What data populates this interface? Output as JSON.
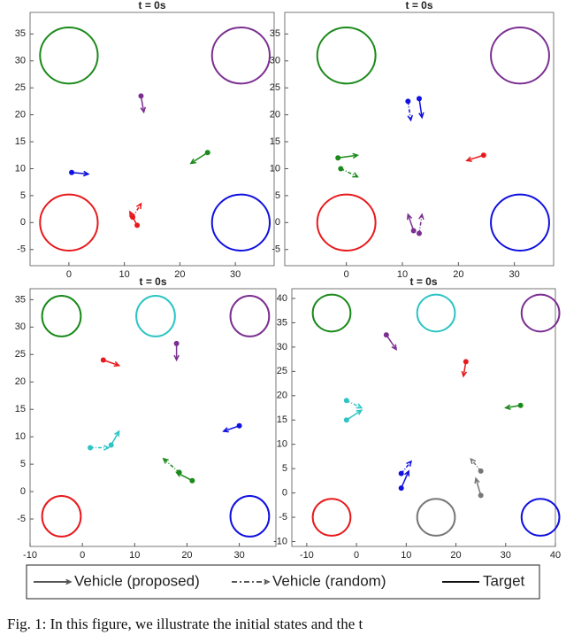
{
  "chart_data": [
    {
      "type": "trajectory",
      "title": "t = 0s",
      "xlim": [
        -7,
        37
      ],
      "ylim": [
        -8,
        39
      ],
      "xticks": [
        0,
        10,
        20,
        30
      ],
      "yticks": [
        -5,
        0,
        5,
        10,
        15,
        20,
        25,
        30,
        35
      ],
      "targets": [
        {
          "x": 0,
          "y": 31,
          "r": 5.2,
          "color": "#1a8a1a"
        },
        {
          "x": 31,
          "y": 31,
          "r": 5.2,
          "color": "#7b2f91"
        },
        {
          "x": 0,
          "y": 0,
          "r": 5.2,
          "color": "#e8191c"
        },
        {
          "x": 31,
          "y": 0,
          "r": 5.2,
          "color": "#1010e0"
        }
      ],
      "vehicles": [
        {
          "x": 13,
          "y": 23.5,
          "x2": 13.5,
          "y2": 20.5,
          "style": "solid",
          "color": "#7b2f91"
        },
        {
          "x": 25,
          "y": 13,
          "x2": 22,
          "y2": 11,
          "style": "solid",
          "color": "#1a8a1a"
        },
        {
          "x": 0.5,
          "y": 9.3,
          "x2": 3.5,
          "y2": 9,
          "style": "solid",
          "color": "#1010e0"
        },
        {
          "x": 12.3,
          "y": -0.5,
          "x2": 11,
          "y2": 2,
          "style": "solid",
          "color": "#e8191c"
        },
        {
          "x": 11.5,
          "y": 1,
          "x2": 13,
          "y2": 3.5,
          "style": "dashdot",
          "color": "#e8191c"
        }
      ]
    },
    {
      "type": "trajectory",
      "title": "t = 0s",
      "xlim": [
        -11,
        37
      ],
      "ylim": [
        -8,
        39
      ],
      "xticks": [
        0,
        10,
        20,
        30
      ],
      "yticks": [
        -5,
        0,
        5,
        10,
        15,
        20,
        25,
        30,
        35
      ],
      "targets": [
        {
          "x": 0,
          "y": 31,
          "r": 5.2,
          "color": "#1a8a1a"
        },
        {
          "x": 31,
          "y": 31,
          "r": 5.2,
          "color": "#7b2f91"
        },
        {
          "x": 0,
          "y": 0,
          "r": 5.2,
          "color": "#e8191c"
        },
        {
          "x": 31,
          "y": 0,
          "r": 5.2,
          "color": "#1010e0"
        }
      ],
      "vehicles": [
        {
          "x": 11,
          "y": 22.5,
          "x2": 11.5,
          "y2": 19,
          "style": "dashdot",
          "color": "#1010e0"
        },
        {
          "x": 13,
          "y": 23,
          "x2": 13.5,
          "y2": 19.5,
          "style": "solid",
          "color": "#1010e0"
        },
        {
          "x": -1.5,
          "y": 12,
          "x2": 2,
          "y2": 12.5,
          "style": "solid",
          "color": "#1a8a1a"
        },
        {
          "x": -1,
          "y": 10,
          "x2": 2,
          "y2": 8.5,
          "style": "dashdot",
          "color": "#1a8a1a"
        },
        {
          "x": 24.5,
          "y": 12.5,
          "x2": 21.5,
          "y2": 11.5,
          "style": "solid",
          "color": "#e8191c"
        },
        {
          "x": 12,
          "y": -1.5,
          "x2": 11,
          "y2": 1.5,
          "style": "solid",
          "color": "#7b2f91"
        },
        {
          "x": 13,
          "y": -2,
          "x2": 13.5,
          "y2": 1.5,
          "style": "dashdot",
          "color": "#7b2f91"
        }
      ]
    },
    {
      "type": "trajectory",
      "title": "t = 0s",
      "xlim": [
        -10,
        37
      ],
      "ylim": [
        -10,
        37
      ],
      "xticks": [
        -10,
        0,
        10,
        20,
        30
      ],
      "yticks": [
        -5,
        0,
        5,
        10,
        15,
        20,
        25,
        30,
        35
      ],
      "targets": [
        {
          "x": -4,
          "y": 32,
          "r": 3.7,
          "color": "#1a8a1a"
        },
        {
          "x": 14,
          "y": 32,
          "r": 3.7,
          "color": "#2ec4c4"
        },
        {
          "x": 32,
          "y": 32,
          "r": 3.7,
          "color": "#7b2f91"
        },
        {
          "x": -4,
          "y": -4.5,
          "r": 3.7,
          "color": "#e8191c"
        },
        {
          "x": 32,
          "y": -4.5,
          "r": 3.7,
          "color": "#1010e0"
        }
      ],
      "vehicles": [
        {
          "x": 4,
          "y": 24,
          "x2": 7,
          "y2": 23,
          "style": "solid",
          "color": "#e8191c"
        },
        {
          "x": 18,
          "y": 27,
          "x2": 18,
          "y2": 24,
          "style": "solid",
          "color": "#7b2f91"
        },
        {
          "x": 30,
          "y": 12,
          "x2": 27,
          "y2": 11,
          "style": "solid",
          "color": "#1010e0"
        },
        {
          "x": 21,
          "y": 2,
          "x2": 18,
          "y2": 3.5,
          "style": "solid",
          "color": "#1a8a1a"
        },
        {
          "x": 18.5,
          "y": 3.5,
          "x2": 15.5,
          "y2": 6,
          "style": "dashdot",
          "color": "#1a8a1a"
        },
        {
          "x": 5.5,
          "y": 8.5,
          "x2": 7,
          "y2": 11,
          "style": "solid",
          "color": "#2ec4c4"
        },
        {
          "x": 1.5,
          "y": 8,
          "x2": 5,
          "y2": 8,
          "style": "dashdot",
          "color": "#2ec4c4"
        }
      ]
    },
    {
      "type": "trajectory",
      "title": "t = 0s",
      "xlim": [
        -13,
        40
      ],
      "ylim": [
        -11,
        42
      ],
      "xticks": [
        -10,
        0,
        10,
        20,
        30,
        40
      ],
      "yticks": [
        -10,
        -5,
        0,
        5,
        10,
        15,
        20,
        25,
        30,
        35,
        40
      ],
      "targets": [
        {
          "x": -5,
          "y": 37,
          "r": 3.8,
          "color": "#1a8a1a"
        },
        {
          "x": 16,
          "y": 37,
          "r": 3.8,
          "color": "#2ec4c4"
        },
        {
          "x": 37,
          "y": 37,
          "r": 3.8,
          "color": "#7b2f91"
        },
        {
          "x": -5,
          "y": -5,
          "r": 3.8,
          "color": "#e8191c"
        },
        {
          "x": 16,
          "y": -5,
          "r": 3.8,
          "color": "#777777"
        },
        {
          "x": 37,
          "y": -5,
          "r": 3.8,
          "color": "#1010e0"
        }
      ],
      "vehicles": [
        {
          "x": 6,
          "y": 32.5,
          "x2": 8,
          "y2": 29.5,
          "style": "solid",
          "color": "#7b2f91"
        },
        {
          "x": 22,
          "y": 27,
          "x2": 21.5,
          "y2": 24,
          "style": "solid",
          "color": "#e8191c"
        },
        {
          "x": 33,
          "y": 18,
          "x2": 30,
          "y2": 17.5,
          "style": "solid",
          "color": "#1a8a1a"
        },
        {
          "x": -2,
          "y": 19,
          "x2": 1,
          "y2": 17.5,
          "style": "dashdot",
          "color": "#2ec4c4"
        },
        {
          "x": -2,
          "y": 15,
          "x2": 1,
          "y2": 17,
          "style": "solid",
          "color": "#2ec4c4"
        },
        {
          "x": 9,
          "y": 4,
          "x2": 11,
          "y2": 6.5,
          "style": "dashdot",
          "color": "#1010e0"
        },
        {
          "x": 9,
          "y": 1,
          "x2": 10.5,
          "y2": 4.5,
          "style": "solid",
          "color": "#1010e0"
        },
        {
          "x": 25,
          "y": 4.5,
          "x2": 23,
          "y2": 7,
          "style": "dashdot",
          "color": "#777777"
        },
        {
          "x": 25,
          "y": -0.5,
          "x2": 24,
          "y2": 3,
          "style": "solid",
          "color": "#777777"
        }
      ]
    }
  ],
  "legend": {
    "items": [
      "Vehicle (proposed)",
      "Vehicle (random)",
      "Target"
    ]
  },
  "caption": "Fig. 1: In this figure, we illustrate the initial states and the t"
}
